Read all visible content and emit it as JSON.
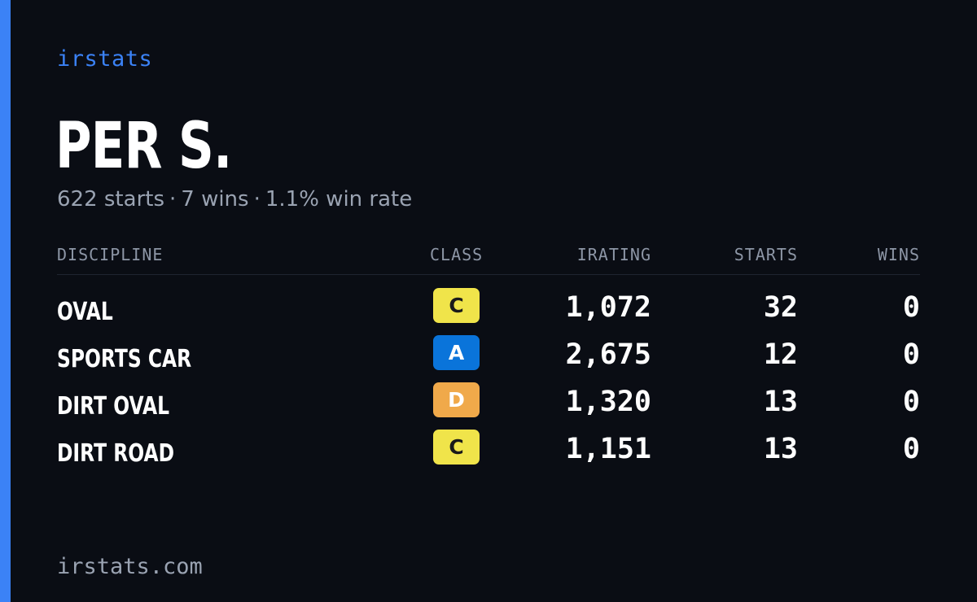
{
  "brand": "irstats",
  "player": {
    "name": "PER S.",
    "starts_text": "622 starts",
    "wins_text": "7 wins",
    "win_rate_text": "1.1% win rate",
    "separator": "·"
  },
  "table": {
    "headers": {
      "discipline": "DISCIPLINE",
      "class": "CLASS",
      "irating": "IRATING",
      "starts": "STARTS",
      "wins": "WINS"
    },
    "rows": [
      {
        "discipline": "OVAL",
        "class": "C",
        "class_color": "#f0e44a",
        "class_text_color": "#1a1a1a",
        "irating": "1,072",
        "starts": "32",
        "wins": "0"
      },
      {
        "discipline": "SPORTS CAR",
        "class": "A",
        "class_color": "#0a74da",
        "class_text_color": "#ffffff",
        "irating": "2,675",
        "starts": "12",
        "wins": "0"
      },
      {
        "discipline": "DIRT OVAL",
        "class": "D",
        "class_color": "#f0a94a",
        "class_text_color": "#ffffff",
        "irating": "1,320",
        "starts": "13",
        "wins": "0"
      },
      {
        "discipline": "DIRT ROAD",
        "class": "C",
        "class_color": "#f0e44a",
        "class_text_color": "#1a1a1a",
        "irating": "1,151",
        "starts": "13",
        "wins": "0"
      }
    ]
  },
  "footer": "irstats.com",
  "colors": {
    "accent": "#3b82f6",
    "background": "#0a0d14",
    "muted": "#9aa3b2"
  }
}
